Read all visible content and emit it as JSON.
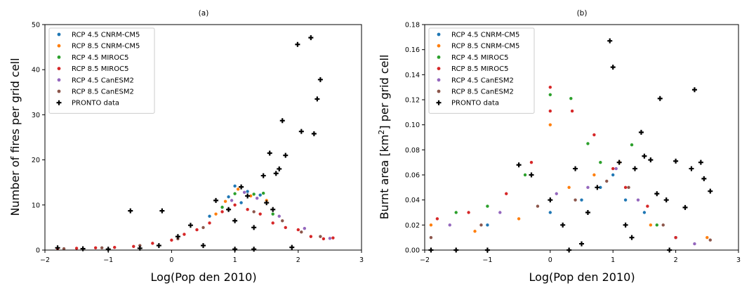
{
  "chart_data": [
    {
      "type": "scatter",
      "title": "(a)",
      "xlabel": "Log(Pop den 2010)",
      "ylabel": "Number of fires per grid cell",
      "xlim": [
        -2,
        3
      ],
      "ylim": [
        0,
        50
      ],
      "xticks": [
        "−2",
        "−1",
        "0",
        "1",
        "2",
        "3"
      ],
      "yticks": [
        "0",
        "10",
        "20",
        "30",
        "40",
        "50"
      ],
      "legend_position": "top-left",
      "grid": false,
      "series": [
        {
          "name": "RCP 4.5 CNRM-CM5",
          "color": "#1f77b4",
          "marker": "dot",
          "points": [
            [
              1.0,
              14.2
            ],
            [
              1.2,
              13.0
            ],
            [
              1.4,
              12.2
            ],
            [
              0.9,
              11.8
            ],
            [
              1.1,
              10.5
            ],
            [
              0.6,
              7.5
            ]
          ]
        },
        {
          "name": "RCP 8.5 CNRM-CM5",
          "color": "#ff7f0e",
          "marker": "dot",
          "points": [
            [
              1.05,
              13.5
            ],
            [
              1.25,
              12.0
            ],
            [
              0.85,
              10.8
            ],
            [
              1.5,
              11.0
            ],
            [
              0.7,
              8.0
            ]
          ]
        },
        {
          "name": "RCP 4.5 MIROC5",
          "color": "#2ca02c",
          "marker": "dot",
          "points": [
            [
              1.0,
              12.5
            ],
            [
              1.3,
              12.4
            ],
            [
              1.6,
              8.0
            ],
            [
              0.8,
              9.5
            ],
            [
              1.45,
              12.6
            ]
          ]
        },
        {
          "name": "RCP 8.5 MIROC5",
          "color": "#d62728",
          "marker": "dot",
          "points": [
            [
              -1.8,
              0.3
            ],
            [
              -1.5,
              0.4
            ],
            [
              -1.2,
              0.5
            ],
            [
              -0.9,
              0.6
            ],
            [
              -0.6,
              0.8
            ],
            [
              -0.3,
              1.5
            ],
            [
              0.0,
              2.2
            ],
            [
              0.2,
              3.5
            ],
            [
              0.4,
              4.5
            ],
            [
              0.6,
              6.0
            ],
            [
              0.8,
              8.5
            ],
            [
              1.0,
              10.0
            ],
            [
              1.2,
              9.0
            ],
            [
              1.4,
              8.0
            ],
            [
              1.6,
              6.0
            ],
            [
              1.8,
              5.0
            ],
            [
              2.0,
              4.5
            ],
            [
              2.2,
              3.0
            ],
            [
              2.4,
              2.5
            ],
            [
              2.55,
              2.7
            ]
          ]
        },
        {
          "name": "RCP 4.5 CanESM2",
          "color": "#9467bd",
          "marker": "dot",
          "points": [
            [
              1.15,
              12.8
            ],
            [
              1.35,
              11.5
            ],
            [
              0.95,
              11.0
            ],
            [
              1.7,
              7.5
            ],
            [
              2.1,
              4.8
            ],
            [
              2.5,
              2.6
            ]
          ]
        },
        {
          "name": "RCP 8.5 CanESM2",
          "color": "#8c564b",
          "marker": "dot",
          "points": [
            [
              -1.7,
              0.3
            ],
            [
              -1.1,
              0.5
            ],
            [
              -0.5,
              1.0
            ],
            [
              0.1,
              2.5
            ],
            [
              0.5,
              5.0
            ],
            [
              0.9,
              9.0
            ],
            [
              1.3,
              8.5
            ],
            [
              1.75,
              6.5
            ],
            [
              2.05,
              4.0
            ],
            [
              2.35,
              3.0
            ]
          ]
        },
        {
          "name": "PRONTO data",
          "color": "#000000",
          "marker": "plus",
          "points": [
            [
              -1.8,
              0.5
            ],
            [
              -1.4,
              0.3
            ],
            [
              -1.0,
              0.2
            ],
            [
              -0.65,
              8.7
            ],
            [
              -0.5,
              0.4
            ],
            [
              -0.15,
              8.7
            ],
            [
              -0.2,
              1.0
            ],
            [
              0.1,
              3.0
            ],
            [
              0.3,
              5.5
            ],
            [
              0.5,
              1.0
            ],
            [
              0.7,
              11.0
            ],
            [
              0.9,
              9.0
            ],
            [
              1.0,
              6.5
            ],
            [
              1.1,
              14.0
            ],
            [
              1.2,
              12.0
            ],
            [
              1.3,
              5.0
            ],
            [
              1.45,
              16.5
            ],
            [
              1.5,
              10.5
            ],
            [
              1.55,
              21.5
            ],
            [
              1.6,
              9.0
            ],
            [
              1.65,
              17.0
            ],
            [
              1.7,
              18.0
            ],
            [
              1.75,
              28.7
            ],
            [
              1.8,
              21.0
            ],
            [
              1.99,
              45.6
            ],
            [
              2.05,
              26.3
            ],
            [
              2.2,
              47.1
            ],
            [
              2.25,
              25.8
            ],
            [
              2.3,
              33.5
            ],
            [
              2.35,
              37.8
            ],
            [
              1.0,
              0.2
            ],
            [
              1.3,
              0.2
            ],
            [
              1.9,
              0.6
            ]
          ]
        }
      ]
    },
    {
      "type": "scatter",
      "title": "(b)",
      "xlabel": "Log(Pop den 2010)",
      "ylabel": "Burnt area [km²] per grid cell",
      "ylabel_main": "Burnt area [km",
      "ylabel_sup": "2",
      "ylabel_tail": "] per grid cell",
      "xlim": [
        -2,
        3
      ],
      "ylim": [
        0,
        0.18
      ],
      "xticks": [
        "−2",
        "−1",
        "0",
        "1",
        "2",
        "3"
      ],
      "yticks": [
        "0.00",
        "0.02",
        "0.04",
        "0.06",
        "0.08",
        "0.10",
        "0.12",
        "0.14",
        "0.16",
        "0.18"
      ],
      "legend_position": "top-left",
      "grid": false,
      "series": [
        {
          "name": "RCP 4.5 CNRM-CM5",
          "color": "#1f77b4",
          "marker": "dot",
          "points": [
            [
              -1.0,
              0.02
            ],
            [
              0.0,
              0.03
            ],
            [
              0.5,
              0.04
            ],
            [
              0.8,
              0.05
            ],
            [
              1.0,
              0.06
            ],
            [
              1.2,
              0.04
            ],
            [
              1.5,
              0.03
            ],
            [
              2.0,
              0.01
            ]
          ]
        },
        {
          "name": "RCP 8.5 CNRM-CM5",
          "color": "#ff7f0e",
          "marker": "dot",
          "points": [
            [
              -1.9,
              0.02
            ],
            [
              -1.2,
              0.015
            ],
            [
              -0.5,
              0.025
            ],
            [
              0.0,
              0.1
            ],
            [
              0.3,
              0.05
            ],
            [
              0.7,
              0.06
            ],
            [
              1.1,
              0.07
            ],
            [
              1.6,
              0.02
            ],
            [
              2.5,
              0.01
            ]
          ]
        },
        {
          "name": "RCP 4.5 MIROC5",
          "color": "#2ca02c",
          "marker": "dot",
          "points": [
            [
              -1.5,
              0.03
            ],
            [
              -1.0,
              0.035
            ],
            [
              -0.4,
              0.06
            ],
            [
              0.0,
              0.124
            ],
            [
              0.33,
              0.121
            ],
            [
              0.6,
              0.085
            ],
            [
              0.8,
              0.07
            ],
            [
              1.3,
              0.084
            ],
            [
              1.7,
              0.02
            ]
          ]
        },
        {
          "name": "RCP 8.5 MIROC5",
          "color": "#d62728",
          "marker": "dot",
          "points": [
            [
              -1.8,
              0.025
            ],
            [
              -1.3,
              0.03
            ],
            [
              -0.7,
              0.045
            ],
            [
              -0.3,
              0.07
            ],
            [
              0.0,
              0.13
            ],
            [
              0.0,
              0.111
            ],
            [
              0.35,
              0.111
            ],
            [
              0.7,
              0.092
            ],
            [
              1.0,
              0.065
            ],
            [
              1.2,
              0.05
            ],
            [
              1.55,
              0.035
            ],
            [
              2.0,
              0.01
            ]
          ]
        },
        {
          "name": "RCP 4.5 CanESM2",
          "color": "#9467bd",
          "marker": "dot",
          "points": [
            [
              -1.6,
              0.02
            ],
            [
              -0.8,
              0.03
            ],
            [
              0.1,
              0.045
            ],
            [
              0.6,
              0.05
            ],
            [
              1.05,
              0.065
            ],
            [
              1.4,
              0.04
            ],
            [
              2.3,
              0.005
            ]
          ]
        },
        {
          "name": "RCP 8.5 CanESM2",
          "color": "#8c564b",
          "marker": "dot",
          "points": [
            [
              -1.9,
              0.01
            ],
            [
              -1.1,
              0.02
            ],
            [
              -0.2,
              0.035
            ],
            [
              0.4,
              0.04
            ],
            [
              0.9,
              0.055
            ],
            [
              1.25,
              0.05
            ],
            [
              1.8,
              0.02
            ],
            [
              2.55,
              0.008
            ]
          ]
        },
        {
          "name": "PRONTO data",
          "color": "#000000",
          "marker": "plus",
          "points": [
            [
              -1.9,
              0.0
            ],
            [
              -1.5,
              0.0
            ],
            [
              -1.0,
              0.0
            ],
            [
              -0.5,
              0.068
            ],
            [
              -0.3,
              0.06
            ],
            [
              0.0,
              0.04
            ],
            [
              0.2,
              0.02
            ],
            [
              0.4,
              0.065
            ],
            [
              0.5,
              0.005
            ],
            [
              0.6,
              0.03
            ],
            [
              0.75,
              0.05
            ],
            [
              0.95,
              0.167
            ],
            [
              1.0,
              0.146
            ],
            [
              1.1,
              0.07
            ],
            [
              1.2,
              0.02
            ],
            [
              1.35,
              0.065
            ],
            [
              1.45,
              0.094
            ],
            [
              1.5,
              0.075
            ],
            [
              1.6,
              0.072
            ],
            [
              1.7,
              0.045
            ],
            [
              1.75,
              0.121
            ],
            [
              1.85,
              0.04
            ],
            [
              2.0,
              0.071
            ],
            [
              2.15,
              0.034
            ],
            [
              2.25,
              0.065
            ],
            [
              2.3,
              0.128
            ],
            [
              2.4,
              0.07
            ],
            [
              2.45,
              0.057
            ],
            [
              2.55,
              0.047
            ],
            [
              1.3,
              0.01
            ],
            [
              0.3,
              0.0
            ],
            [
              1.9,
              0.0
            ]
          ]
        }
      ]
    }
  ]
}
